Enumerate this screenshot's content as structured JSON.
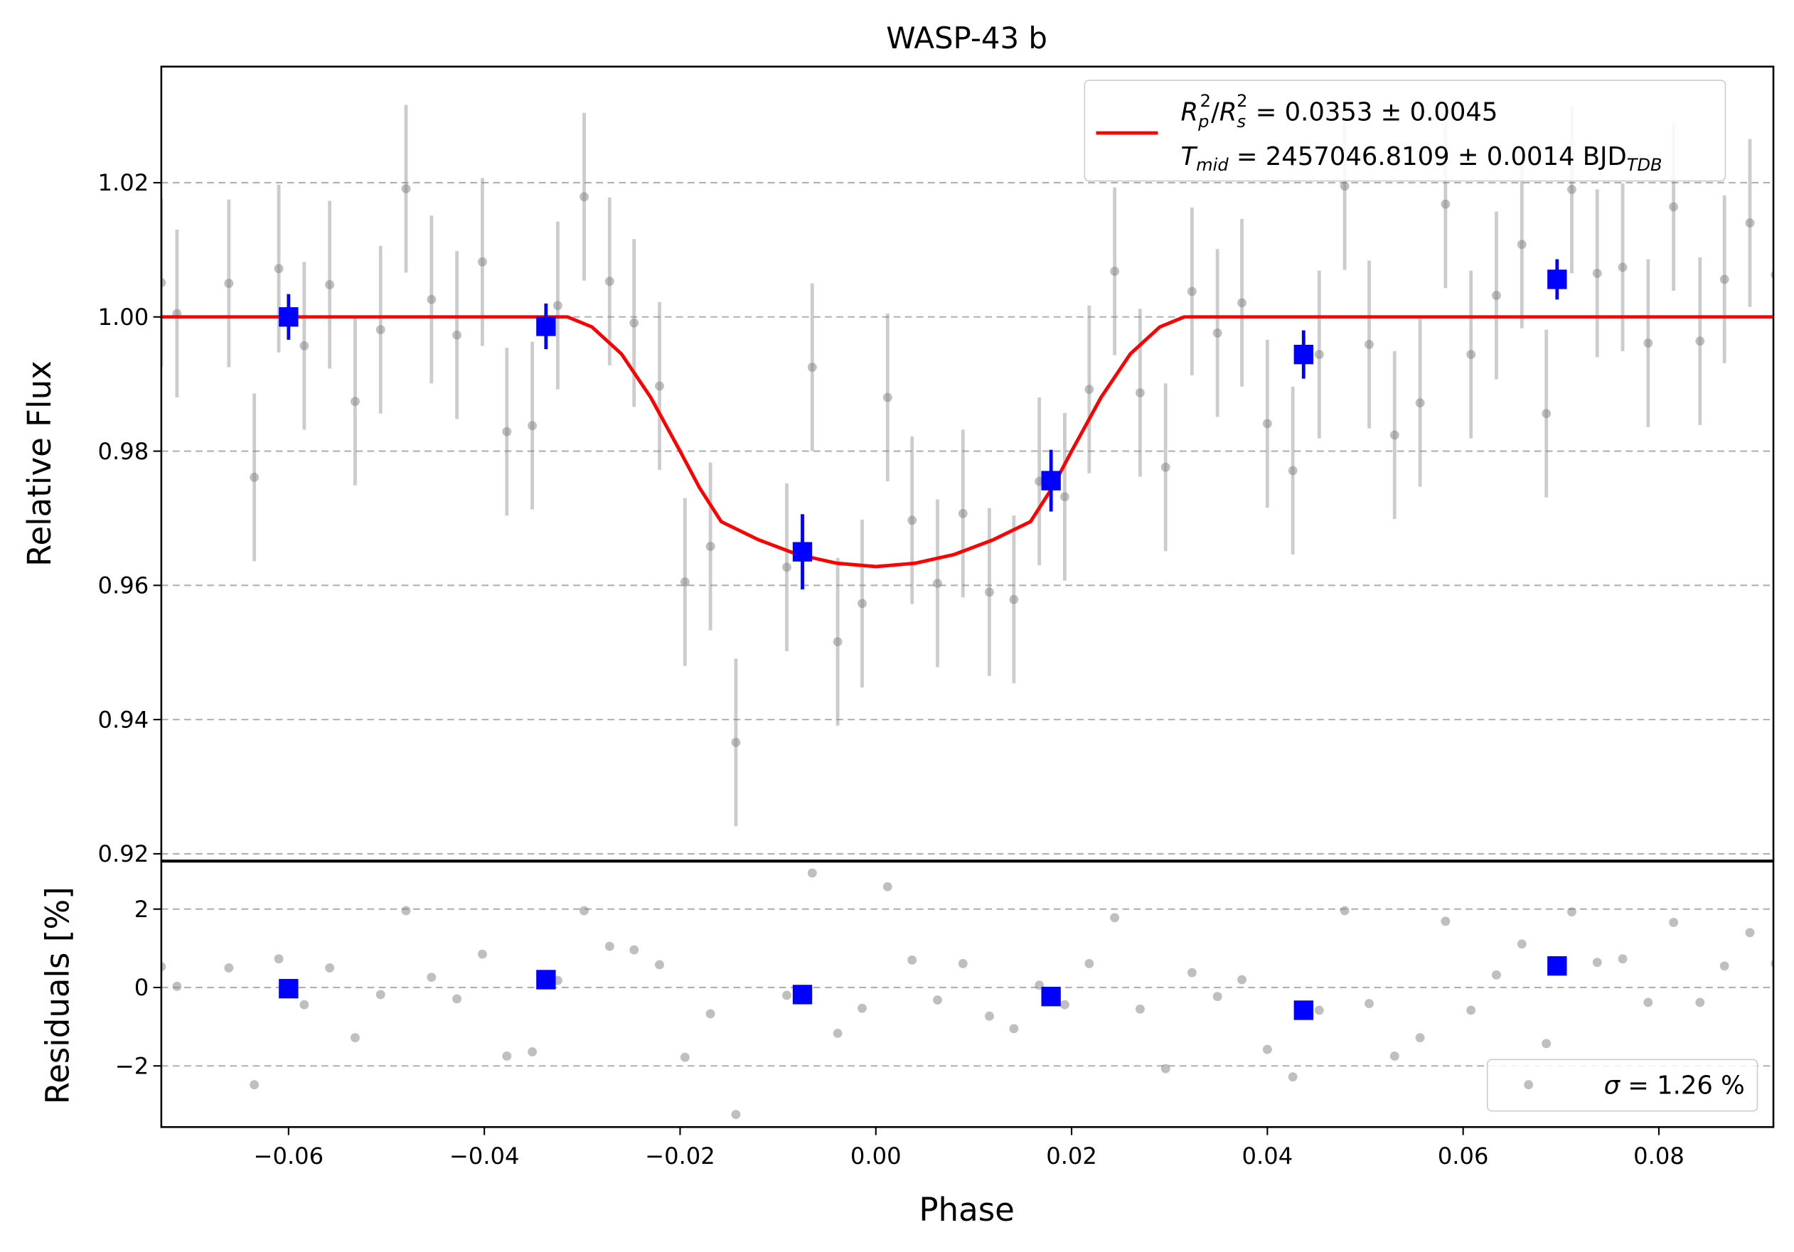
{
  "chart_data": [
    {
      "type": "scatter",
      "title": "WASP-43 b",
      "ylabel": "Relative Flux",
      "xlim": [
        -0.073,
        0.0917
      ],
      "ylim": [
        0.919,
        1.0373
      ],
      "yticks": [
        0.92,
        0.94,
        0.96,
        0.98,
        {
          "value": 1.0,
          "label": "1.00"
        },
        1.02
      ],
      "grid": true,
      "legend": {
        "corner": "upper right",
        "parts": [
          [
            "R",
            "p",
            "2",
            "/",
            "R",
            "s",
            "2",
            " = 0.0353 ± 0.0045"
          ],
          [
            "T",
            "mid",
            " = 2457046.8109 ± 0.0014 BJD",
            "TDB"
          ]
        ]
      },
      "series": [
        {
          "mark": "circle",
          "color": "#808080",
          "x": [
            -0.073,
            -0.0714,
            -0.0661,
            -0.0635,
            -0.061,
            -0.0584,
            -0.0558,
            -0.0532,
            -0.0506,
            -0.048,
            -0.0454,
            -0.0428,
            -0.0402,
            -0.0377,
            -0.0351,
            -0.0325,
            -0.0298,
            -0.0272,
            -0.0247,
            -0.0221,
            -0.0195,
            -0.0169,
            -0.0143,
            -0.0091,
            -0.0065,
            -0.0039,
            -0.0014,
            0.0012,
            0.0037,
            0.0063,
            0.0089,
            0.0116,
            0.0141,
            0.0167,
            0.0193,
            0.0218,
            0.0244,
            0.027,
            0.0296,
            0.0323,
            0.0349,
            0.0374,
            0.04,
            0.0426,
            0.0453,
            0.0479,
            0.0504,
            0.053,
            0.0556,
            0.0582,
            0.0608,
            0.0634,
            0.066,
            0.0685,
            0.0711,
            0.0737,
            0.0763,
            0.0789,
            0.0815,
            0.0842,
            0.0867,
            0.0893,
            0.0919
          ],
          "values": [
            1.0051,
            1.0005,
            1.005,
            0.9761,
            1.0072,
            0.9957,
            1.0048,
            0.9874,
            0.9981,
            1.0191,
            1.0026,
            0.9973,
            1.0082,
            0.9829,
            0.9838,
            1.0017,
            1.0179,
            1.0053,
            0.9991,
            0.9897,
            0.9605,
            0.9658,
            0.9366,
            0.9627,
            0.9925,
            0.9516,
            0.9573,
            0.988,
            0.9697,
            0.9603,
            0.9707,
            0.959,
            0.9579,
            0.9755,
            0.9732,
            0.9892,
            1.0068,
            0.9887,
            0.9776,
            1.0038,
            0.9976,
            1.0021,
            0.9841,
            0.9771,
            0.9944,
            1.0195,
            0.9959,
            0.9824,
            0.9872,
            1.0168,
            0.9944,
            1.0032,
            1.0108,
            0.9856,
            1.019,
            1.0065,
            1.0074,
            0.9961,
            1.0164,
            0.9964,
            1.0056,
            1.014,
            1.0063
          ],
          "errors": [
            0.0125,
            0.0125,
            0.0125,
            0.0125,
            0.0125,
            0.0125,
            0.0125,
            0.0125,
            0.0125,
            0.0125,
            0.0125,
            0.0125,
            0.0125,
            0.0125,
            0.0125,
            0.0125,
            0.0125,
            0.0125,
            0.0125,
            0.0125,
            0.0125,
            0.0125,
            0.0125,
            0.0125,
            0.0125,
            0.0125,
            0.0125,
            0.0125,
            0.0125,
            0.0125,
            0.0125,
            0.0125,
            0.0125,
            0.0125,
            0.0125,
            0.0125,
            0.0125,
            0.0125,
            0.0125,
            0.0125,
            0.0125,
            0.0125,
            0.0125,
            0.0125,
            0.0125,
            0.0125,
            0.0125,
            0.0125,
            0.0125,
            0.0125,
            0.0125,
            0.0125,
            0.0125,
            0.0125,
            0.0125,
            0.0125,
            0.0125,
            0.0125,
            0.0125,
            0.0125,
            0.0125,
            0.0125,
            0.0125
          ]
        },
        {
          "mark": "square",
          "color": "#0000ff",
          "x": [
            -0.06,
            -0.0337,
            -0.0075,
            0.0179,
            0.0437,
            0.0696
          ],
          "values": [
            1.0,
            0.9986,
            0.965,
            0.9756,
            0.9944,
            1.0056
          ],
          "errors": [
            0.0034,
            0.0034,
            0.0056,
            0.0046,
            0.0036,
            0.003
          ]
        },
        {
          "mark": "line",
          "color": "#ff0000",
          "x": [
            -0.073,
            -0.0315,
            -0.029,
            -0.026,
            -0.023,
            -0.02,
            -0.018,
            -0.0158,
            -0.012,
            -0.008,
            -0.004,
            0,
            0.004,
            0.008,
            0.012,
            0.0158,
            0.018,
            0.02,
            0.023,
            0.026,
            0.029,
            0.0315,
            0.0917
          ],
          "values": [
            1,
            1,
            0.9985,
            0.9945,
            0.988,
            0.98,
            0.9745,
            0.9695,
            0.9668,
            0.9646,
            0.9633,
            0.9628,
            0.9633,
            0.9646,
            0.9668,
            0.9695,
            0.9745,
            0.98,
            0.988,
            0.9945,
            0.9985,
            1,
            1
          ]
        }
      ]
    },
    {
      "type": "scatter",
      "xlabel": "Phase",
      "ylabel": "Residuals [%]",
      "xlim": [
        -0.073,
        0.0917
      ],
      "ylim": [
        -3.56,
        3.21
      ],
      "xticks": [
        {
          "value": -0.06,
          "label": "−0.06"
        },
        {
          "value": -0.04,
          "label": "−0.04"
        },
        {
          "value": -0.02,
          "label": "−0.02"
        },
        {
          "value": 0,
          "label": "0.00"
        },
        0.02,
        0.04,
        0.06,
        0.08
      ],
      "yticks": [
        {
          "value": -2,
          "label": "−2"
        },
        0,
        2
      ],
      "grid": true,
      "legend": {
        "corner": "lower right",
        "parts": [
          "σ",
          " = 1.26 %"
        ]
      },
      "series": [
        {
          "mark": "circle",
          "color": "#808080",
          "x": [
            -0.073,
            -0.0714,
            -0.0661,
            -0.0635,
            -0.061,
            -0.0584,
            -0.0558,
            -0.0532,
            -0.0506,
            -0.048,
            -0.0454,
            -0.0428,
            -0.0402,
            -0.0377,
            -0.0351,
            -0.0325,
            -0.0298,
            -0.0272,
            -0.0247,
            -0.0221,
            -0.0195,
            -0.0169,
            -0.0143,
            -0.0091,
            -0.0065,
            -0.0039,
            -0.0014,
            0.0012,
            0.0037,
            0.0063,
            0.0089,
            0.0116,
            0.0141,
            0.0167,
            0.0193,
            0.0218,
            0.0244,
            0.027,
            0.0296,
            0.0323,
            0.0349,
            0.0374,
            0.04,
            0.0426,
            0.0453,
            0.0479,
            0.0504,
            0.053,
            0.0556,
            0.0582,
            0.0608,
            0.0634,
            0.066,
            0.0685,
            0.0711,
            0.0737,
            0.0763,
            0.0789,
            0.0815,
            0.0842,
            0.0867,
            0.0893,
            0.0919
          ],
          "values": [
            0.53,
            0.03,
            0.5,
            -2.48,
            0.73,
            -0.44,
            0.5,
            -1.28,
            -0.18,
            1.96,
            0.26,
            -0.29,
            0.85,
            -1.75,
            -1.64,
            0.18,
            1.96,
            1.05,
            0.96,
            0.58,
            -1.78,
            -0.67,
            -3.24,
            -0.2,
            2.92,
            -1.17,
            -0.53,
            2.57,
            0.7,
            -0.32,
            0.61,
            -0.73,
            -1.05,
            0.06,
            -0.44,
            0.61,
            1.78,
            -0.55,
            -2.07,
            0.38,
            -0.23,
            0.2,
            -1.58,
            -2.28,
            -0.58,
            1.96,
            -0.41,
            -1.75,
            -1.28,
            1.69,
            -0.58,
            0.32,
            1.11,
            -1.43,
            1.93,
            0.64,
            0.73,
            -0.38,
            1.66,
            -0.38,
            0.55,
            1.4,
            0.61
          ]
        },
        {
          "mark": "square",
          "color": "#0000ff",
          "x": [
            -0.06,
            -0.0337,
            -0.0075,
            0.0179,
            0.0437,
            0.0696
          ],
          "values": [
            -0.03,
            0.2,
            -0.18,
            -0.23,
            -0.58,
            0.55
          ]
        }
      ]
    }
  ]
}
